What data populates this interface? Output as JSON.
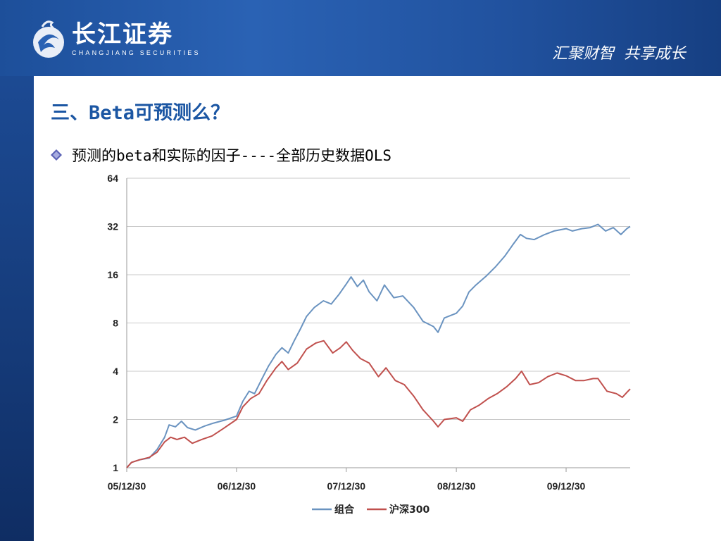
{
  "header": {
    "logo_cn": "长江证券",
    "logo_en": "CHANGJIANG SECURITIES",
    "slogan": "汇聚财智  共享成长"
  },
  "colors": {
    "header": "#2a62b4",
    "title": "#1b56a3",
    "series1": "#6a93c0",
    "series2": "#c0504d"
  },
  "slide": {
    "title": "三、Beta可预测么？",
    "bullet": "预测的beta和实际的因子----全部历史数据OLS"
  },
  "chart_data": {
    "type": "line",
    "y_scale": "log2",
    "ylim": [
      1,
      64
    ],
    "y_ticks": [
      "1",
      "2",
      "4",
      "8",
      "16",
      "32",
      "64"
    ],
    "x_ticks": [
      "05/12/30",
      "06/12/30",
      "07/12/30",
      "08/12/30",
      "09/12/30"
    ],
    "xlim": [
      "2005-12-30",
      "2010-07-31"
    ],
    "grid": true,
    "legend_position": "bottom",
    "series": [
      {
        "name": "组合",
        "color": "#6a93c0",
        "points": [
          [
            "2005-12-30",
            1.0
          ],
          [
            "2006-01-15",
            1.08
          ],
          [
            "2006-02-10",
            1.12
          ],
          [
            "2006-03-15",
            1.15
          ],
          [
            "2006-04-10",
            1.3
          ],
          [
            "2006-05-05",
            1.55
          ],
          [
            "2006-05-20",
            1.85
          ],
          [
            "2006-06-10",
            1.8
          ],
          [
            "2006-06-30",
            1.95
          ],
          [
            "2006-07-20",
            1.78
          ],
          [
            "2006-08-15",
            1.72
          ],
          [
            "2006-09-15",
            1.82
          ],
          [
            "2006-10-15",
            1.9
          ],
          [
            "2006-11-20",
            1.98
          ],
          [
            "2006-12-30",
            2.1
          ],
          [
            "2007-01-20",
            2.6
          ],
          [
            "2007-02-10",
            3.0
          ],
          [
            "2007-02-28",
            2.9
          ],
          [
            "2007-03-25",
            3.6
          ],
          [
            "2007-04-15",
            4.3
          ],
          [
            "2007-05-10",
            5.1
          ],
          [
            "2007-05-30",
            5.6
          ],
          [
            "2007-06-20",
            5.2
          ],
          [
            "2007-07-10",
            6.2
          ],
          [
            "2007-07-30",
            7.3
          ],
          [
            "2007-08-20",
            8.8
          ],
          [
            "2007-09-15",
            10.0
          ],
          [
            "2007-10-15",
            11.0
          ],
          [
            "2007-11-10",
            10.5
          ],
          [
            "2007-12-05",
            12.0
          ],
          [
            "2007-12-30",
            14.0
          ],
          [
            "2008-01-15",
            15.5
          ],
          [
            "2008-02-05",
            13.5
          ],
          [
            "2008-02-25",
            14.8
          ],
          [
            "2008-03-15",
            12.5
          ],
          [
            "2008-04-10",
            11.0
          ],
          [
            "2008-05-05",
            13.8
          ],
          [
            "2008-06-05",
            11.5
          ],
          [
            "2008-07-05",
            11.8
          ],
          [
            "2008-08-10",
            10.0
          ],
          [
            "2008-09-10",
            8.2
          ],
          [
            "2008-10-15",
            7.6
          ],
          [
            "2008-10-30",
            7.0
          ],
          [
            "2008-11-20",
            8.6
          ],
          [
            "2008-12-30",
            9.2
          ],
          [
            "2009-01-20",
            10.2
          ],
          [
            "2009-02-10",
            12.5
          ],
          [
            "2009-03-05",
            13.8
          ],
          [
            "2009-04-10",
            15.8
          ],
          [
            "2009-05-10",
            18.0
          ],
          [
            "2009-06-10",
            21.0
          ],
          [
            "2009-07-05",
            24.5
          ],
          [
            "2009-07-31",
            28.5
          ],
          [
            "2009-08-20",
            27.0
          ],
          [
            "2009-09-15",
            26.5
          ],
          [
            "2009-10-20",
            28.5
          ],
          [
            "2009-11-20",
            30.0
          ],
          [
            "2009-12-30",
            31.0
          ],
          [
            "2010-01-20",
            30.0
          ],
          [
            "2010-02-20",
            31.0
          ],
          [
            "2010-03-20",
            31.5
          ],
          [
            "2010-04-15",
            33.0
          ],
          [
            "2010-05-10",
            30.0
          ],
          [
            "2010-06-05",
            31.5
          ],
          [
            "2010-06-30",
            28.5
          ],
          [
            "2010-07-20",
            31.0
          ],
          [
            "2010-07-31",
            32.0
          ]
        ]
      },
      {
        "name": "沪深300",
        "color": "#c0504d",
        "points": [
          [
            "2005-12-30",
            1.0
          ],
          [
            "2006-01-15",
            1.08
          ],
          [
            "2006-02-10",
            1.12
          ],
          [
            "2006-03-15",
            1.16
          ],
          [
            "2006-04-10",
            1.25
          ],
          [
            "2006-05-05",
            1.45
          ],
          [
            "2006-05-25",
            1.55
          ],
          [
            "2006-06-15",
            1.5
          ],
          [
            "2006-07-10",
            1.55
          ],
          [
            "2006-08-05",
            1.42
          ],
          [
            "2006-09-05",
            1.5
          ],
          [
            "2006-10-10",
            1.58
          ],
          [
            "2006-11-15",
            1.75
          ],
          [
            "2006-12-30",
            2.0
          ],
          [
            "2007-01-20",
            2.4
          ],
          [
            "2007-02-15",
            2.7
          ],
          [
            "2007-03-15",
            2.9
          ],
          [
            "2007-04-10",
            3.5
          ],
          [
            "2007-05-10",
            4.2
          ],
          [
            "2007-05-30",
            4.6
          ],
          [
            "2007-06-20",
            4.1
          ],
          [
            "2007-07-20",
            4.5
          ],
          [
            "2007-08-20",
            5.5
          ],
          [
            "2007-09-20",
            6.0
          ],
          [
            "2007-10-16",
            6.2
          ],
          [
            "2007-11-15",
            5.2
          ],
          [
            "2007-12-10",
            5.6
          ],
          [
            "2007-12-30",
            6.1
          ],
          [
            "2008-01-20",
            5.4
          ],
          [
            "2008-02-15",
            4.8
          ],
          [
            "2008-03-15",
            4.5
          ],
          [
            "2008-04-15",
            3.7
          ],
          [
            "2008-05-10",
            4.2
          ],
          [
            "2008-06-10",
            3.5
          ],
          [
            "2008-07-10",
            3.3
          ],
          [
            "2008-08-10",
            2.8
          ],
          [
            "2008-09-10",
            2.3
          ],
          [
            "2008-10-15",
            1.95
          ],
          [
            "2008-10-30",
            1.8
          ],
          [
            "2008-11-20",
            2.0
          ],
          [
            "2008-12-30",
            2.05
          ],
          [
            "2009-01-20",
            1.95
          ],
          [
            "2009-02-15",
            2.3
          ],
          [
            "2009-03-15",
            2.45
          ],
          [
            "2009-04-15",
            2.7
          ],
          [
            "2009-05-15",
            2.9
          ],
          [
            "2009-06-15",
            3.2
          ],
          [
            "2009-07-15",
            3.6
          ],
          [
            "2009-08-04",
            4.0
          ],
          [
            "2009-08-31",
            3.3
          ],
          [
            "2009-09-30",
            3.4
          ],
          [
            "2009-10-30",
            3.7
          ],
          [
            "2009-11-30",
            3.9
          ],
          [
            "2009-12-30",
            3.75
          ],
          [
            "2010-01-30",
            3.5
          ],
          [
            "2010-02-28",
            3.5
          ],
          [
            "2010-03-30",
            3.6
          ],
          [
            "2010-04-15",
            3.6
          ],
          [
            "2010-05-15",
            3.0
          ],
          [
            "2010-06-15",
            2.9
          ],
          [
            "2010-07-05",
            2.75
          ],
          [
            "2010-07-20",
            2.95
          ],
          [
            "2010-07-31",
            3.1
          ]
        ]
      }
    ]
  }
}
